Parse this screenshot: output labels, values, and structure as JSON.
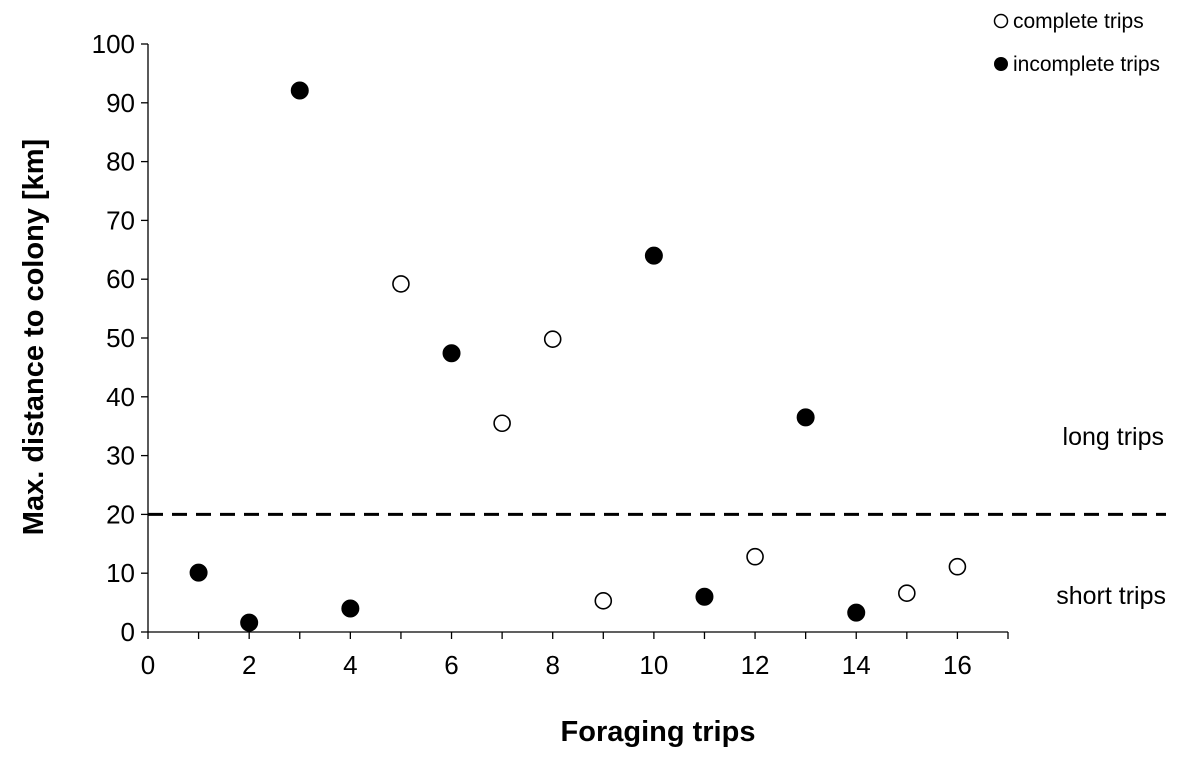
{
  "chart_data": {
    "type": "scatter",
    "xlabel": "Foraging trips",
    "ylabel": "Max. distance to colony [km]",
    "xlim": [
      0,
      17
    ],
    "ylim": [
      0,
      100
    ],
    "xticks": [
      0,
      2,
      4,
      6,
      8,
      10,
      12,
      14,
      16
    ],
    "yticks": [
      0,
      10,
      20,
      30,
      40,
      50,
      60,
      70,
      80,
      90,
      100
    ],
    "series": [
      {
        "name": "complete trips",
        "marker": "open-circle",
        "color": "#000000",
        "x": [
          5,
          7,
          8,
          9,
          12,
          15,
          16
        ],
        "y": [
          59.2,
          35.5,
          49.8,
          5.3,
          12.8,
          6.6,
          11.1
        ]
      },
      {
        "name": "incomplete trips",
        "marker": "filled-circle",
        "color": "#000000",
        "x": [
          1,
          2,
          3,
          4,
          6,
          10,
          11,
          13,
          14
        ],
        "y": [
          10.1,
          1.6,
          92.1,
          4.0,
          47.4,
          64.0,
          6.0,
          36.5,
          3.3
        ]
      }
    ],
    "reference_line": {
      "y": 20,
      "style": "dashed"
    },
    "annotations": [
      {
        "text": "long trips",
        "y": 40
      },
      {
        "text": "short trips",
        "y": 6.5
      }
    ],
    "legend_position": "top-right",
    "grid": false
  }
}
